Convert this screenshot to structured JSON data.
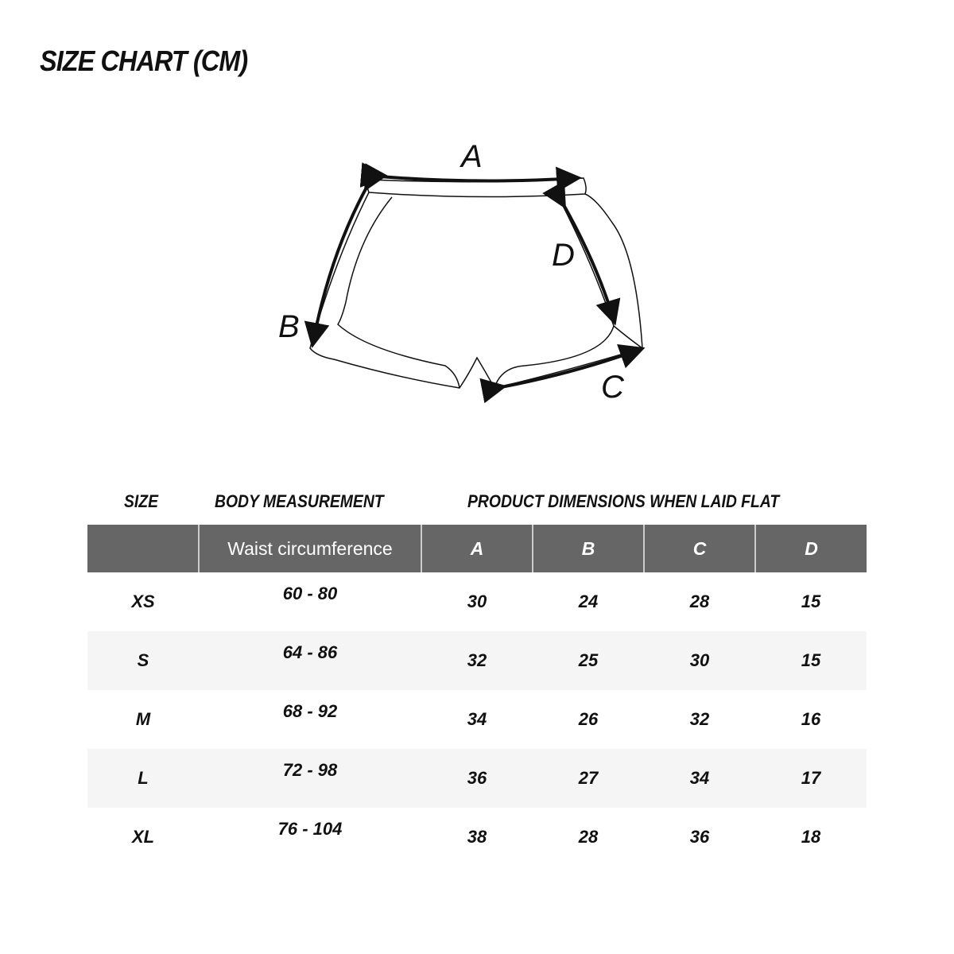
{
  "title": "SIZE CHART (CM)",
  "diagram": {
    "labels": [
      "A",
      "B",
      "C",
      "D"
    ]
  },
  "table": {
    "group_headers": {
      "size": "SIZE",
      "body": "BODY MEASUREMENT",
      "product": "PRODUCT DIMENSIONS WHEN LAID FLAT"
    },
    "columns": [
      "",
      "Waist circumference",
      "A",
      "B",
      "C",
      "D"
    ],
    "rows": [
      [
        "XS",
        "60 - 80",
        "30",
        "24",
        "28",
        "15"
      ],
      [
        "S",
        "64 - 86",
        "32",
        "25",
        "30",
        "15"
      ],
      [
        "M",
        "68 - 92",
        "34",
        "26",
        "32",
        "16"
      ],
      [
        "L",
        "72 - 98",
        "36",
        "27",
        "34",
        "17"
      ],
      [
        "XL",
        "76 - 104",
        "38",
        "28",
        "36",
        "18"
      ]
    ]
  },
  "colors": {
    "header_bg": "#666666",
    "alt_row_bg": "#f5f5f5"
  }
}
